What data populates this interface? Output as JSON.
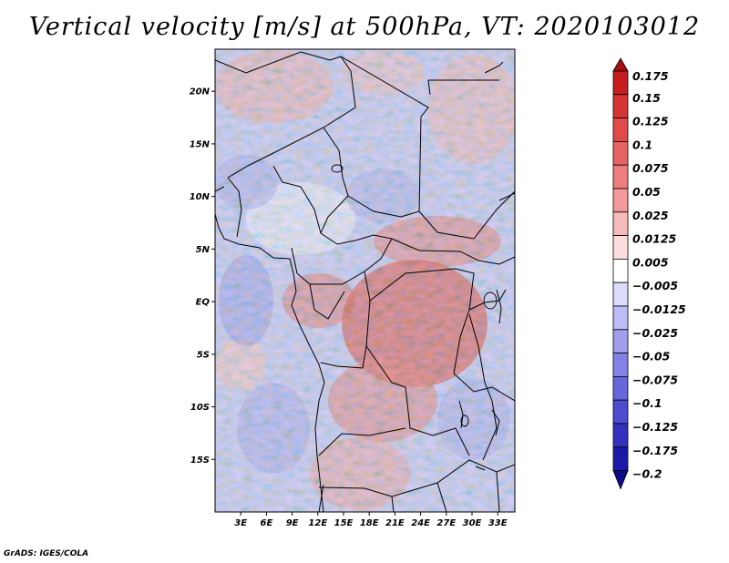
{
  "title": "Vertical velocity [m/s] at 500hPa, VT: 2020103012",
  "credit": "GrADS: IGES/COLA",
  "map": {
    "variable": "Vertical velocity",
    "units": "m/s",
    "level": "500hPa",
    "valid_time": "2020103012",
    "lon_range": [
      0,
      35
    ],
    "lat_range": [
      -20,
      24
    ],
    "x_tick_labels": [
      "3E",
      "6E",
      "9E",
      "12E",
      "15E",
      "18E",
      "21E",
      "24E",
      "27E",
      "30E",
      "33E"
    ],
    "y_tick_labels": [
      "20N",
      "15N",
      "10N",
      "5N",
      "EQ",
      "5S",
      "10S",
      "15S"
    ]
  },
  "colorbar": {
    "labels": [
      "0.175",
      "0.15",
      "0.125",
      "0.1",
      "0.075",
      "0.05",
      "0.025",
      "0.0125",
      "0.005",
      "-0.005",
      "-0.0125",
      "-0.025",
      "-0.05",
      "-0.075",
      "-0.1",
      "-0.125",
      "-0.175",
      "-0.2"
    ],
    "colors": [
      "#a50f0f",
      "#c41d1d",
      "#d63333",
      "#e24a4a",
      "#e86464",
      "#ee7e7e",
      "#f39a9a",
      "#f8bbbb",
      "#fcdcdc",
      "#ffffff",
      "#dcdcfc",
      "#bcbcf6",
      "#9f9fee",
      "#8383e6",
      "#6767dc",
      "#4c4cd0",
      "#3232bf",
      "#1a1aa8",
      "#0a0a8a"
    ]
  }
}
